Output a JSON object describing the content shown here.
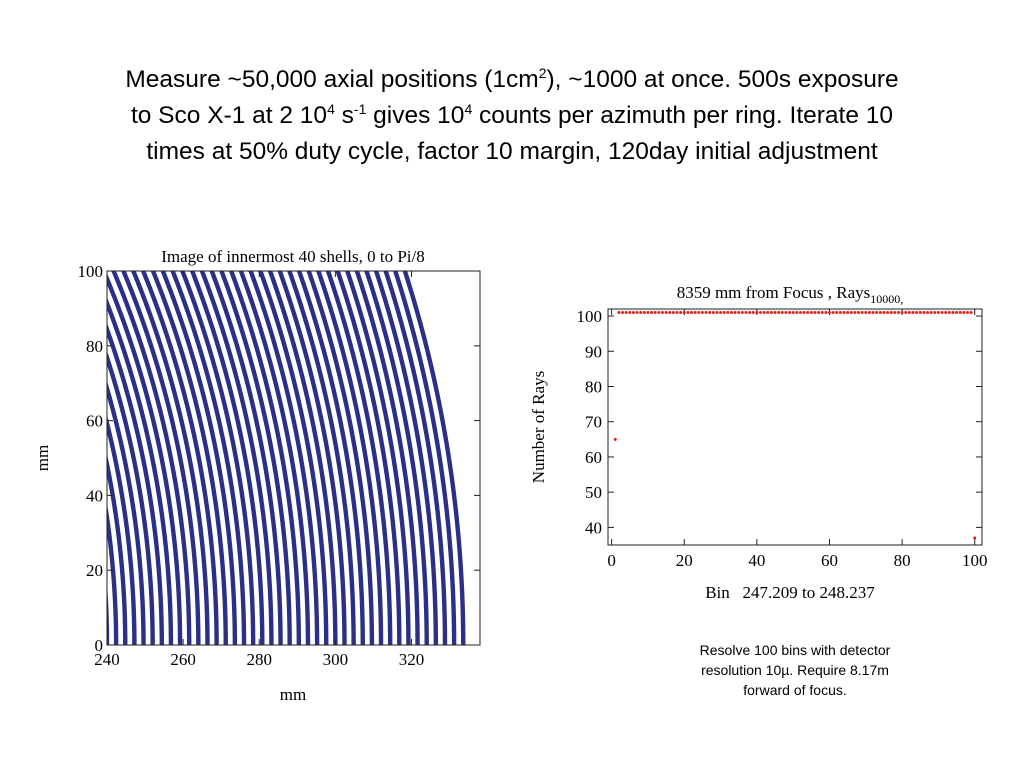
{
  "slide": {
    "title": {
      "l1_a": "Measure ~50,000 axial positions (1cm",
      "l1_sup": "2",
      "l1_b": "), ~1000 at once. 500s exposure",
      "l2_a": "to Sco X-1 at 2 10",
      "l2_sup1": "4",
      "l2_b": " s",
      "l2_sup2": "-1",
      "l2_c": " gives 10",
      "l2_sup3": "4",
      "l2_d": " counts per azimuth per ring. Iterate 10",
      "l3": "times at 50% duty cycle, factor 10 margin, 120day initial adjustment"
    },
    "caption": {
      "l1": "Resolve 100 bins with detector",
      "l2": "resolution 10µ. Require 8.17m",
      "l3": "forward of focus."
    }
  },
  "chart_data": [
    {
      "type": "line",
      "title": "Image of innermost 40 shells, 0 to Pi/8",
      "xlabel": "mm",
      "ylabel": "mm",
      "xlim": [
        240,
        338
      ],
      "ylim": [
        0,
        100
      ],
      "xticks": [
        240,
        260,
        280,
        300,
        320
      ],
      "yticks": [
        0,
        20,
        40,
        60,
        80,
        100
      ],
      "color": "#2b2f86",
      "series": {
        "count": 40,
        "r_first": 240,
        "r_spacing": 2.4,
        "phi_range": [
          0,
          0.3927
        ]
      },
      "grid": false
    },
    {
      "type": "scatter",
      "title_main": "8359 mm from Focus , Rays",
      "title_sub": "10000,",
      "xlabel": "Bin   247.209 to 248.237",
      "ylabel": "Number of Rays",
      "xlim": [
        -1,
        102
      ],
      "ylim": [
        35,
        102
      ],
      "xticks": [
        0,
        20,
        40,
        60,
        80,
        100
      ],
      "yticks": [
        40,
        50,
        60,
        70,
        80,
        90,
        100
      ],
      "color": "#e0201a",
      "points": {
        "first": {
          "x": 1,
          "y": 65
        },
        "middle": {
          "x_from": 2,
          "x_to": 99,
          "y": 101
        },
        "last": {
          "x": 100,
          "y": 37
        }
      },
      "grid": false
    }
  ]
}
